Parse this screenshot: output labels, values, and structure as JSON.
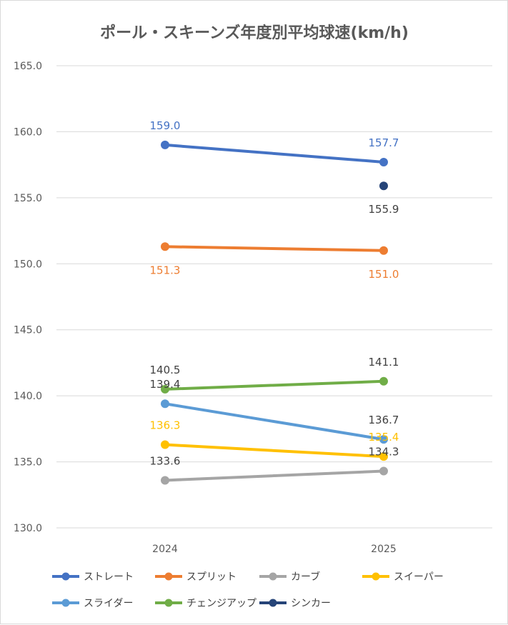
{
  "chart_data": {
    "type": "line",
    "title": "ポール・スキーンズ年度別平均球速(km/h)",
    "categories": [
      "2024",
      "2025"
    ],
    "ylim": [
      130.0,
      165.0
    ],
    "yticks": [
      "130.0",
      "135.0",
      "140.0",
      "145.0",
      "150.0",
      "155.0",
      "160.0",
      "165.0"
    ],
    "grid": true,
    "legend_position": "bottom",
    "series": [
      {
        "name": "ストレート",
        "color": "#4472C4",
        "values": [
          159.0,
          157.7
        ],
        "labels": [
          "159.0",
          "157.7"
        ]
      },
      {
        "name": "スプリット",
        "color": "#ED7D31",
        "values": [
          151.3,
          151.0
        ],
        "labels": [
          "151.3",
          "151.0"
        ]
      },
      {
        "name": "カーブ",
        "color": "#A5A5A5",
        "values": [
          133.6,
          134.3
        ],
        "labels": [
          "133.6",
          "134.3"
        ]
      },
      {
        "name": "スイーパー",
        "color": "#FFC000",
        "values": [
          136.3,
          135.4
        ],
        "labels": [
          "136.3",
          "135.4"
        ]
      },
      {
        "name": "スライダー",
        "color": "#5B9BD5",
        "values": [
          139.4,
          136.7
        ],
        "labels": [
          "139.4",
          "136.7"
        ]
      },
      {
        "name": "チェンジアップ",
        "color": "#70AD47",
        "values": [
          140.5,
          141.1
        ],
        "labels": [
          "140.5",
          "141.1"
        ]
      },
      {
        "name": "シンカー",
        "color": "#264478",
        "values": [
          null,
          155.9
        ],
        "labels": [
          "",
          "155.9"
        ]
      }
    ]
  }
}
